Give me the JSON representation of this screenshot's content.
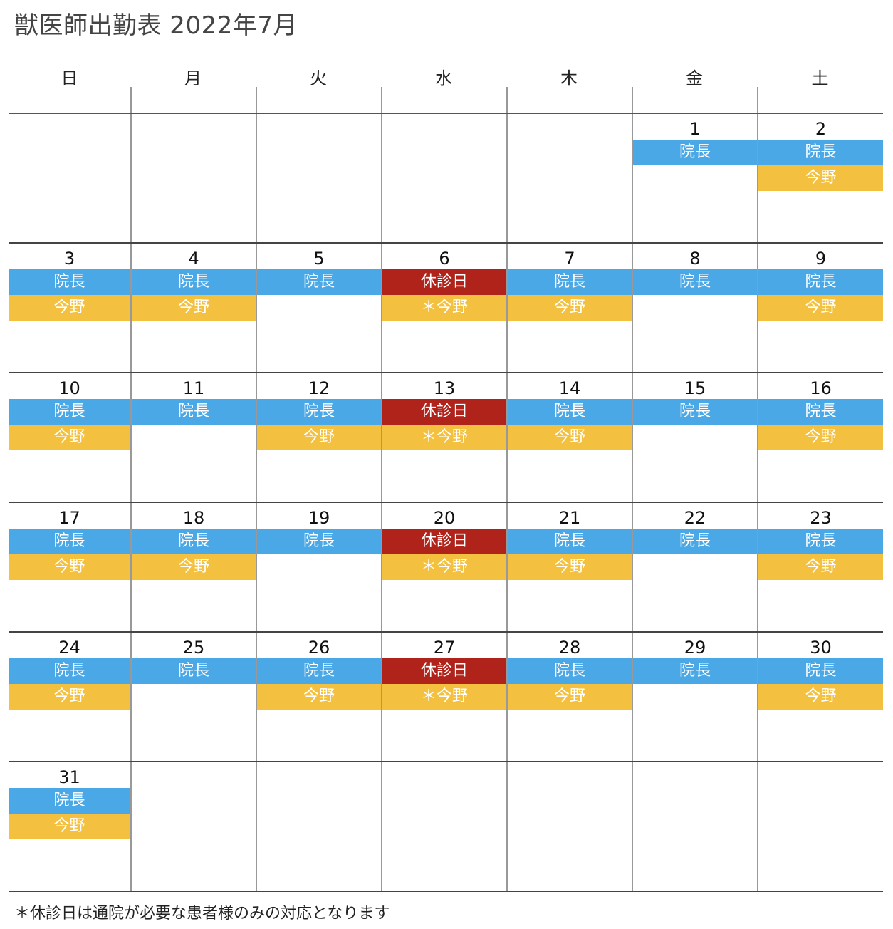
{
  "title": "獣医師出勤表 2022年7月",
  "weekdays": [
    "日",
    "月",
    "火",
    "水",
    "木",
    "金",
    "土"
  ],
  "colors": {
    "director": "#4aa8e6",
    "imano": "#f3c13f",
    "closed": "#b0231a"
  },
  "weeks": [
    [
      null,
      null,
      null,
      null,
      null,
      {
        "day": "1",
        "staff": [
          {
            "label": "院長",
            "color": "blue"
          }
        ]
      },
      {
        "day": "2",
        "staff": [
          {
            "label": "院長",
            "color": "blue"
          },
          {
            "label": "今野",
            "color": "yellow"
          }
        ]
      }
    ],
    [
      {
        "day": "3",
        "staff": [
          {
            "label": "院長",
            "color": "blue"
          },
          {
            "label": "今野",
            "color": "yellow"
          }
        ]
      },
      {
        "day": "4",
        "staff": [
          {
            "label": "院長",
            "color": "blue"
          },
          {
            "label": "今野",
            "color": "yellow"
          }
        ]
      },
      {
        "day": "5",
        "staff": [
          {
            "label": "院長",
            "color": "blue"
          }
        ]
      },
      {
        "day": "6",
        "staff": [
          {
            "label": "休診日",
            "color": "red"
          },
          {
            "label": "＊今野",
            "color": "yellow"
          }
        ]
      },
      {
        "day": "7",
        "staff": [
          {
            "label": "院長",
            "color": "blue"
          },
          {
            "label": "今野",
            "color": "yellow"
          }
        ]
      },
      {
        "day": "8",
        "staff": [
          {
            "label": "院長",
            "color": "blue"
          }
        ]
      },
      {
        "day": "9",
        "staff": [
          {
            "label": "院長",
            "color": "blue"
          },
          {
            "label": "今野",
            "color": "yellow"
          }
        ]
      }
    ],
    [
      {
        "day": "10",
        "staff": [
          {
            "label": "院長",
            "color": "blue"
          },
          {
            "label": "今野",
            "color": "yellow"
          }
        ]
      },
      {
        "day": "11",
        "staff": [
          {
            "label": "院長",
            "color": "blue"
          }
        ]
      },
      {
        "day": "12",
        "staff": [
          {
            "label": "院長",
            "color": "blue"
          },
          {
            "label": "今野",
            "color": "yellow"
          }
        ]
      },
      {
        "day": "13",
        "staff": [
          {
            "label": "休診日",
            "color": "red"
          },
          {
            "label": "＊今野",
            "color": "yellow"
          }
        ]
      },
      {
        "day": "14",
        "staff": [
          {
            "label": "院長",
            "color": "blue"
          },
          {
            "label": "今野",
            "color": "yellow"
          }
        ]
      },
      {
        "day": "15",
        "staff": [
          {
            "label": "院長",
            "color": "blue"
          }
        ]
      },
      {
        "day": "16",
        "staff": [
          {
            "label": "院長",
            "color": "blue"
          },
          {
            "label": "今野",
            "color": "yellow"
          }
        ]
      }
    ],
    [
      {
        "day": "17",
        "staff": [
          {
            "label": "院長",
            "color": "blue"
          },
          {
            "label": "今野",
            "color": "yellow"
          }
        ]
      },
      {
        "day": "18",
        "staff": [
          {
            "label": "院長",
            "color": "blue"
          },
          {
            "label": "今野",
            "color": "yellow"
          }
        ]
      },
      {
        "day": "19",
        "staff": [
          {
            "label": "院長",
            "color": "blue"
          }
        ]
      },
      {
        "day": "20",
        "staff": [
          {
            "label": "休診日",
            "color": "red"
          },
          {
            "label": "＊今野",
            "color": "yellow"
          }
        ]
      },
      {
        "day": "21",
        "staff": [
          {
            "label": "院長",
            "color": "blue"
          },
          {
            "label": "今野",
            "color": "yellow"
          }
        ]
      },
      {
        "day": "22",
        "staff": [
          {
            "label": "院長",
            "color": "blue"
          }
        ]
      },
      {
        "day": "23",
        "staff": [
          {
            "label": "院長",
            "color": "blue"
          },
          {
            "label": "今野",
            "color": "yellow"
          }
        ]
      }
    ],
    [
      {
        "day": "24",
        "staff": [
          {
            "label": "院長",
            "color": "blue"
          },
          {
            "label": "今野",
            "color": "yellow"
          }
        ]
      },
      {
        "day": "25",
        "staff": [
          {
            "label": "院長",
            "color": "blue"
          }
        ]
      },
      {
        "day": "26",
        "staff": [
          {
            "label": "院長",
            "color": "blue"
          },
          {
            "label": "今野",
            "color": "yellow"
          }
        ]
      },
      {
        "day": "27",
        "staff": [
          {
            "label": "休診日",
            "color": "red"
          },
          {
            "label": "＊今野",
            "color": "yellow"
          }
        ]
      },
      {
        "day": "28",
        "staff": [
          {
            "label": "院長",
            "color": "blue"
          },
          {
            "label": "今野",
            "color": "yellow"
          }
        ]
      },
      {
        "day": "29",
        "staff": [
          {
            "label": "院長",
            "color": "blue"
          }
        ]
      },
      {
        "day": "30",
        "staff": [
          {
            "label": "院長",
            "color": "blue"
          },
          {
            "label": "今野",
            "color": "yellow"
          }
        ]
      }
    ],
    [
      {
        "day": "31",
        "staff": [
          {
            "label": "院長",
            "color": "blue"
          },
          {
            "label": "今野",
            "color": "yellow"
          }
        ]
      },
      null,
      null,
      null,
      null,
      null,
      null
    ]
  ],
  "footnote": "＊休診日は通院が必要な患者様のみの対応となります"
}
